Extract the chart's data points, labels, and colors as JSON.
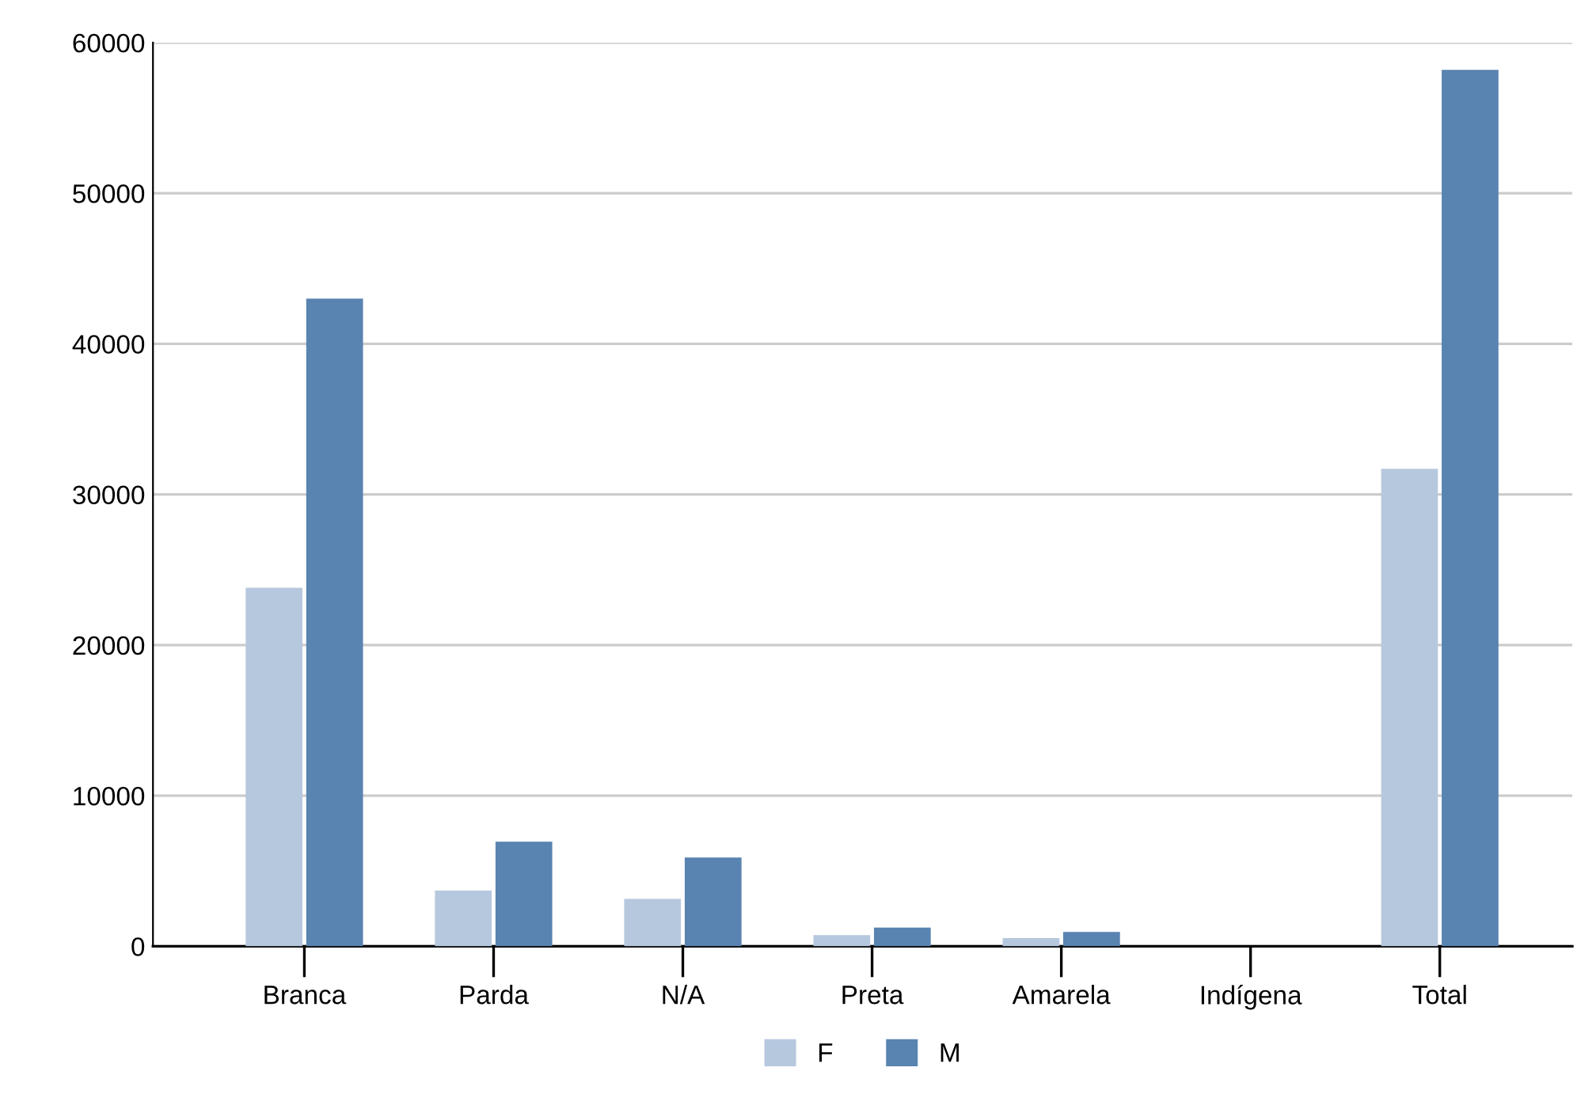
{
  "chart_data": {
    "type": "bar",
    "categories": [
      "Branca",
      "Parda",
      "N/A",
      "Preta",
      "Amarela",
      "Indígena",
      "Total"
    ],
    "series": [
      {
        "name": "F",
        "color": "#b6c8de",
        "values": [
          23800,
          3700,
          3150,
          750,
          550,
          0,
          31700
        ]
      },
      {
        "name": "M",
        "color": "#5983b1",
        "values": [
          43000,
          6950,
          5900,
          1250,
          950,
          0,
          58200
        ]
      }
    ],
    "ylim": [
      0,
      60000
    ],
    "yticks": [
      0,
      10000,
      20000,
      30000,
      40000,
      50000,
      60000
    ],
    "grid": "y",
    "legend": "bottom"
  }
}
